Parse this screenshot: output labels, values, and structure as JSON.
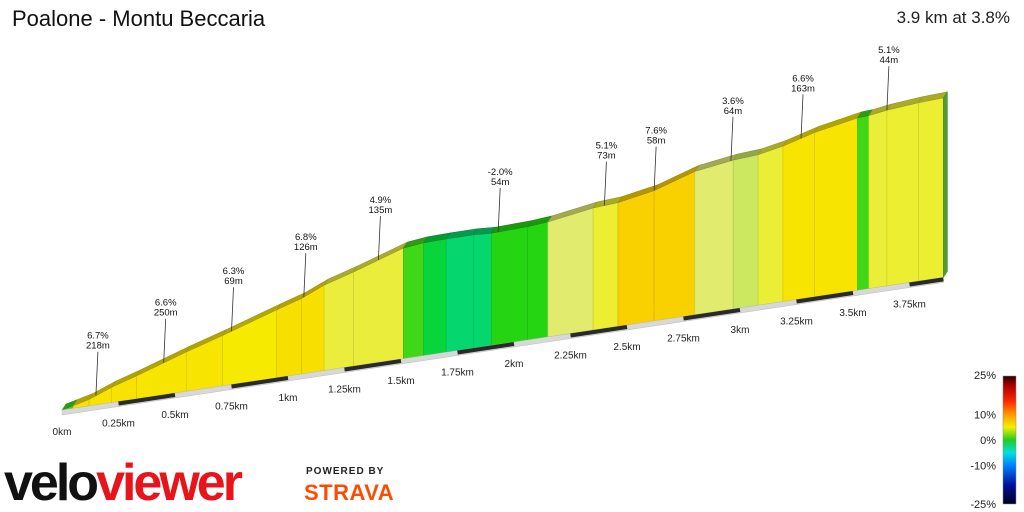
{
  "header": {
    "title": "Poalone - Montu Beccaria",
    "summary": "3.9 km at 3.8%"
  },
  "branding": {
    "logo_text_velo": "velo",
    "logo_text_viewer": "viewer",
    "powered_by": "POWERED BY",
    "strava": "STRAVA",
    "logo_color": "#e8141c"
  },
  "chart_data": {
    "type": "area",
    "xlabel": "",
    "ylabel": "",
    "x_unit": "km",
    "x_ticks": [
      "0km",
      "0.25km",
      "0.5km",
      "0.75km",
      "1km",
      "1.25km",
      "1.5km",
      "1.75km",
      "2km",
      "2.25km",
      "2.5km",
      "2.75km",
      "3km",
      "3.25km",
      "3.5km",
      "3.75km"
    ],
    "x_tick_values": [
      0,
      0.25,
      0.5,
      0.75,
      1.0,
      1.25,
      1.5,
      1.75,
      2.0,
      2.25,
      2.5,
      2.75,
      3.0,
      3.25,
      3.5,
      3.75
    ],
    "total_distance_km": 3.9,
    "elevation_profile": {
      "distance_km": [
        0,
        0.05,
        0.12,
        0.22,
        0.33,
        0.55,
        0.71,
        0.95,
        1.06,
        1.16,
        1.29,
        1.51,
        1.6,
        1.7,
        1.82,
        1.9,
        2.06,
        2.15,
        2.35,
        2.46,
        2.62,
        2.8,
        2.97,
        3.08,
        3.19,
        3.33,
        3.52,
        3.57,
        3.65,
        3.79,
        3.9
      ],
      "elevation_m": [
        0,
        2.5,
        6,
        14,
        21,
        36,
        46,
        62,
        69,
        78,
        86,
        101,
        103,
        103.5,
        103.5,
        102.5,
        103.5,
        105,
        111.5,
        113,
        119,
        131,
        136,
        137.5,
        142,
        150,
        157.5,
        158,
        160.5,
        163,
        164
      ]
    },
    "segment_gradients_pct": [
      1.0,
      6.7,
      6.7,
      6.7,
      6.6,
      6.6,
      6.3,
      6.8,
      6.8,
      4.9,
      4.9,
      1.0,
      -1.0,
      -2.0,
      -2.0,
      0.5,
      0.5,
      4.0,
      5.1,
      7.6,
      7.6,
      4.0,
      3.6,
      5.0,
      6.6,
      6.6,
      1.0,
      5.0,
      5.1,
      5.1
    ],
    "annotations": [
      {
        "gradient": "6.7%",
        "length": "218m",
        "at_km": 0.15
      },
      {
        "gradient": "6.6%",
        "length": "250m",
        "at_km": 0.45
      },
      {
        "gradient": "6.3%",
        "length": "69m",
        "at_km": 0.75
      },
      {
        "gradient": "6.8%",
        "length": "126m",
        "at_km": 1.07
      },
      {
        "gradient": "4.9%",
        "length": "135m",
        "at_km": 1.4
      },
      {
        "gradient": "-2.0%",
        "length": "54m",
        "at_km": 1.93
      },
      {
        "gradient": "5.1%",
        "length": "73m",
        "at_km": 2.4
      },
      {
        "gradient": "7.6%",
        "length": "58m",
        "at_km": 2.62
      },
      {
        "gradient": "3.6%",
        "length": "64m",
        "at_km": 2.96
      },
      {
        "gradient": "6.6%",
        "length": "163m",
        "at_km": 3.27
      },
      {
        "gradient": "5.1%",
        "length": "44m",
        "at_km": 3.65
      }
    ],
    "color_scale": {
      "labels": [
        "25%",
        "10%",
        "0%",
        "-10%",
        "-25%"
      ],
      "values": [
        25,
        10,
        0,
        -10,
        -25
      ]
    }
  }
}
